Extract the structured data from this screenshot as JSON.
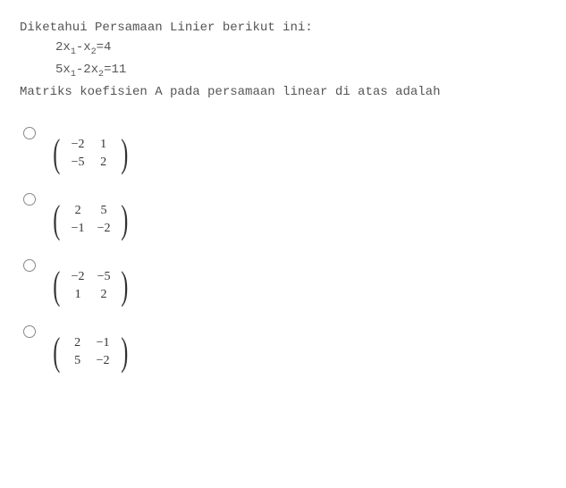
{
  "question": {
    "intro": "Diketahui Persamaan Linier berikut ini:",
    "eq1_pre": "2x",
    "eq1_s1": "1",
    "eq1_mid": "-x",
    "eq1_s2": "2",
    "eq1_post": "=4",
    "eq2_pre": "5x",
    "eq2_s1": "1",
    "eq2_mid": "-2x",
    "eq2_s2": "2",
    "eq2_post": "=11",
    "tail": "Matriks koefisien A pada persamaan linear di atas adalah"
  },
  "options": [
    {
      "m": [
        [
          "−2",
          "1"
        ],
        [
          "−5",
          "2"
        ]
      ]
    },
    {
      "m": [
        [
          "2",
          "5"
        ],
        [
          "−1",
          "−2"
        ]
      ]
    },
    {
      "m": [
        [
          "−2",
          "−5"
        ],
        [
          "1",
          "2"
        ]
      ]
    },
    {
      "m": [
        [
          "2",
          "−1"
        ],
        [
          "5",
          "−2"
        ]
      ]
    }
  ]
}
